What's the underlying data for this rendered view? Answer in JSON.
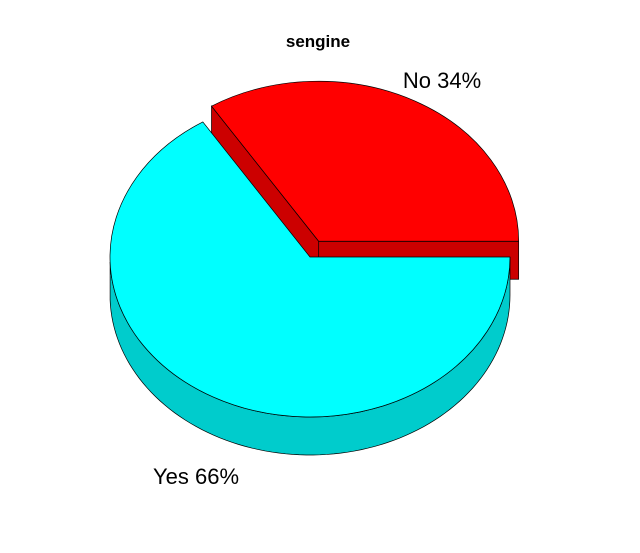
{
  "chart_data": {
    "type": "pie",
    "title": "sengine",
    "three_d": true,
    "exploded": true,
    "slices": [
      {
        "label": "No 34%",
        "value": 34,
        "color": "#ff0000",
        "side_color": "#cc0000"
      },
      {
        "label": "Yes 66%",
        "value": 66,
        "color": "#00ffff",
        "side_color": "#00cccc"
      }
    ]
  }
}
